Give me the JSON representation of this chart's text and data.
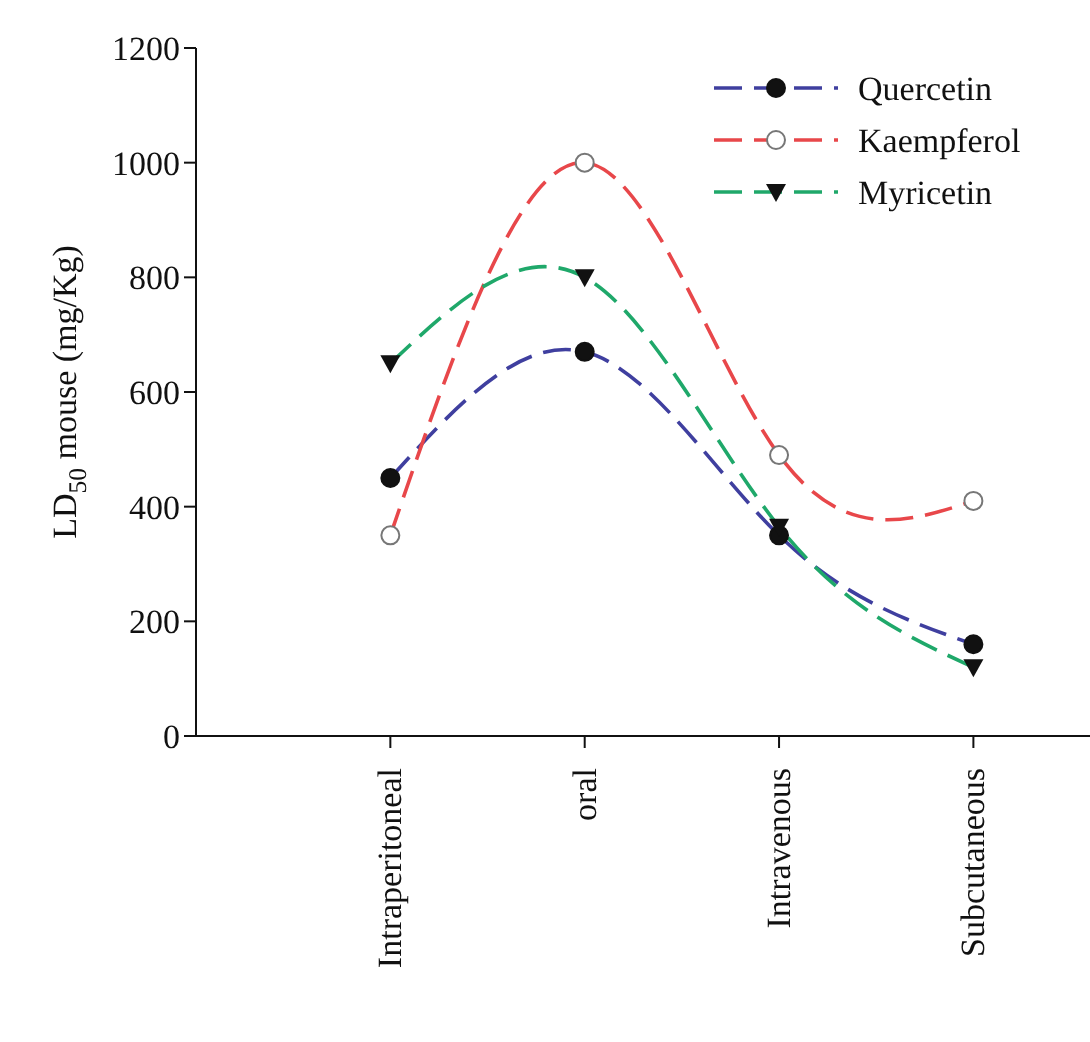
{
  "chart_data": {
    "type": "line",
    "ylabel": "LD$_{50}$ mouse (mg/Kg)",
    "categories": [
      "Intraperitoneal",
      "oral",
      "Intravenous",
      "Subcutaneous"
    ],
    "series": [
      {
        "name": "Quercetin",
        "color": "#3f3f9f",
        "values": [
          450,
          670,
          350,
          160
        ],
        "marker": "circle"
      },
      {
        "name": "Kaempferol",
        "color": "#e8474a",
        "values": [
          350,
          1000,
          490,
          410
        ],
        "marker": "open-circle"
      },
      {
        "name": "Myricetin",
        "color": "#1fa86a",
        "values": [
          650,
          800,
          365,
          120
        ],
        "marker": "triangle-down"
      }
    ],
    "ylim": [
      0,
      1200
    ],
    "yticks": [
      0,
      200,
      400,
      600,
      800,
      1000,
      1200
    ],
    "legend": "top right",
    "line_style": "dashed"
  }
}
